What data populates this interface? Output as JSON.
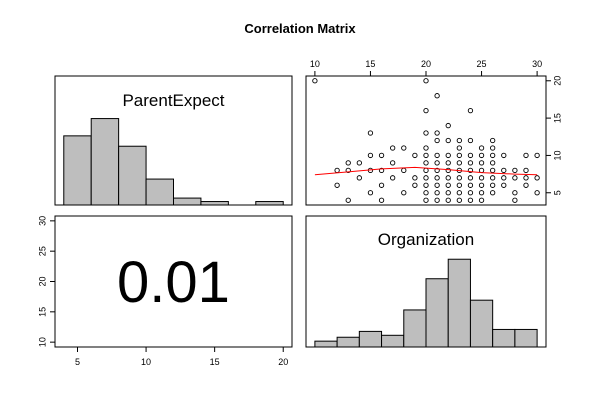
{
  "chart_data": {
    "type": "scatter",
    "title": "Correlation Matrix",
    "variables": [
      "ParentExpect",
      "Organization"
    ],
    "correlation": {
      "value": "0.01",
      "pair": [
        "ParentExpect",
        "Organization"
      ]
    },
    "axes": {
      "ParentExpect": {
        "range": [
          4,
          20
        ],
        "ticks": [
          5,
          10,
          15,
          20
        ]
      },
      "Organization": {
        "range": [
          10,
          30
        ],
        "ticks": [
          10,
          15,
          20,
          25,
          30
        ]
      }
    },
    "histograms": {
      "ParentExpect": {
        "bins": [
          [
            4,
            6
          ],
          [
            6,
            8
          ],
          [
            8,
            10
          ],
          [
            10,
            12
          ],
          [
            12,
            14
          ],
          [
            14,
            16
          ],
          [
            16,
            18
          ],
          [
            18,
            20
          ]
        ],
        "counts": [
          40,
          50,
          34,
          15,
          4,
          2,
          0,
          2
        ]
      },
      "Organization": {
        "bins": [
          [
            10,
            12
          ],
          [
            12,
            14
          ],
          [
            14,
            16
          ],
          [
            16,
            18
          ],
          [
            18,
            20
          ],
          [
            20,
            22
          ],
          [
            22,
            24
          ],
          [
            24,
            26
          ],
          [
            26,
            28
          ],
          [
            28,
            30
          ]
        ],
        "counts": [
          3,
          5,
          8,
          6,
          19,
          35,
          45,
          24,
          9,
          9
        ]
      }
    },
    "scatter": {
      "x_variable": "Organization",
      "y_variable": "ParentExpect",
      "points": [
        [
          10,
          20
        ],
        [
          20,
          20
        ],
        [
          12,
          8
        ],
        [
          12,
          6
        ],
        [
          13,
          9
        ],
        [
          13,
          8
        ],
        [
          13,
          4
        ],
        [
          14,
          9
        ],
        [
          14,
          7
        ],
        [
          15,
          13
        ],
        [
          15,
          10
        ],
        [
          15,
          8
        ],
        [
          15,
          5
        ],
        [
          16,
          10
        ],
        [
          16,
          8
        ],
        [
          16,
          6
        ],
        [
          16,
          4
        ],
        [
          17,
          9
        ],
        [
          17,
          7
        ],
        [
          17,
          11
        ],
        [
          18,
          11
        ],
        [
          18,
          8
        ],
        [
          18,
          5
        ],
        [
          19,
          10
        ],
        [
          19,
          7
        ],
        [
          19,
          6
        ],
        [
          20,
          16
        ],
        [
          20,
          13
        ],
        [
          20,
          11
        ],
        [
          20,
          10
        ],
        [
          20,
          9
        ],
        [
          20,
          8
        ],
        [
          20,
          7
        ],
        [
          20,
          6
        ],
        [
          20,
          5
        ],
        [
          20,
          4
        ],
        [
          21,
          18
        ],
        [
          21,
          13
        ],
        [
          21,
          12
        ],
        [
          21,
          10
        ],
        [
          21,
          9
        ],
        [
          21,
          8
        ],
        [
          21,
          7
        ],
        [
          21,
          6
        ],
        [
          21,
          5
        ],
        [
          21,
          4
        ],
        [
          22,
          14
        ],
        [
          22,
          12
        ],
        [
          22,
          10
        ],
        [
          22,
          9
        ],
        [
          22,
          8
        ],
        [
          22,
          7
        ],
        [
          22,
          6
        ],
        [
          22,
          5
        ],
        [
          22,
          4
        ],
        [
          23,
          12
        ],
        [
          23,
          11
        ],
        [
          23,
          10
        ],
        [
          23,
          9
        ],
        [
          23,
          8
        ],
        [
          23,
          7
        ],
        [
          23,
          6
        ],
        [
          23,
          5
        ],
        [
          23,
          4
        ],
        [
          24,
          16
        ],
        [
          24,
          12
        ],
        [
          24,
          10
        ],
        [
          24,
          9
        ],
        [
          24,
          8
        ],
        [
          24,
          7
        ],
        [
          24,
          6
        ],
        [
          24,
          5
        ],
        [
          24,
          4
        ],
        [
          25,
          11
        ],
        [
          25,
          10
        ],
        [
          25,
          9
        ],
        [
          25,
          8
        ],
        [
          25,
          7
        ],
        [
          25,
          6
        ],
        [
          25,
          5
        ],
        [
          25,
          4
        ],
        [
          26,
          12
        ],
        [
          26,
          11
        ],
        [
          26,
          10
        ],
        [
          26,
          9
        ],
        [
          26,
          8
        ],
        [
          26,
          7
        ],
        [
          26,
          6
        ],
        [
          26,
          5
        ],
        [
          27,
          10
        ],
        [
          27,
          8
        ],
        [
          27,
          7
        ],
        [
          27,
          6
        ],
        [
          28,
          8
        ],
        [
          28,
          7
        ],
        [
          28,
          5
        ],
        [
          28,
          4
        ],
        [
          29,
          10
        ],
        [
          29,
          8
        ],
        [
          29,
          7
        ],
        [
          29,
          6
        ],
        [
          30,
          10
        ],
        [
          30,
          7
        ],
        [
          30,
          5
        ]
      ],
      "smooth_line": [
        [
          10,
          7.4
        ],
        [
          13,
          7.8
        ],
        [
          16,
          8.2
        ],
        [
          19,
          8.4
        ],
        [
          22,
          8.1
        ],
        [
          25,
          7.7
        ],
        [
          28,
          7.5
        ],
        [
          30,
          7.4
        ]
      ],
      "smooth_color": "#ff0000"
    },
    "colors": {
      "bar_fill": "#bebebe",
      "stroke": "#000000",
      "background": "#ffffff"
    },
    "grid": false
  }
}
